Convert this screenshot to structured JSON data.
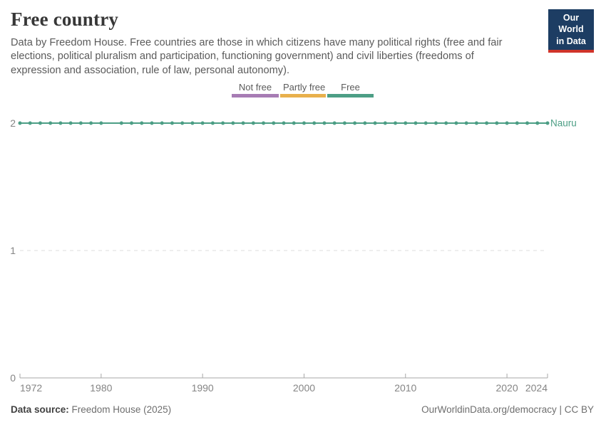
{
  "header": {
    "title": "Free country",
    "subtitle": "Data by Freedom House. Free countries are those in which citizens have many political rights (free and fair elections, political pluralism and participation, functioning government) and civil liberties (freedoms of expression and association, rule of law, personal autonomy).",
    "logo": {
      "line1": "Our World",
      "line2": "in Data",
      "bg_color": "#1d3d63",
      "accent_color": "#d0342a"
    }
  },
  "legend": {
    "items": [
      {
        "label": "Not free",
        "color": "#a77cb4"
      },
      {
        "label": "Partly free",
        "color": "#e8b04c"
      },
      {
        "label": "Free",
        "color": "#4c9e85"
      }
    ]
  },
  "chart_data": {
    "type": "line",
    "title": "Free country",
    "entity_label": "Nauru",
    "series": [
      {
        "name": "Nauru",
        "color": "#4c9e85",
        "x": [
          1972,
          1973,
          1974,
          1975,
          1976,
          1977,
          1978,
          1979,
          1980,
          1982,
          1983,
          1984,
          1985,
          1986,
          1987,
          1988,
          1989,
          1990,
          1991,
          1992,
          1993,
          1994,
          1995,
          1996,
          1997,
          1998,
          1999,
          2000,
          2001,
          2002,
          2003,
          2004,
          2005,
          2006,
          2007,
          2008,
          2009,
          2010,
          2011,
          2012,
          2013,
          2014,
          2015,
          2016,
          2017,
          2018,
          2019,
          2020,
          2021,
          2022,
          2023,
          2024
        ],
        "y": [
          2,
          2,
          2,
          2,
          2,
          2,
          2,
          2,
          2,
          2,
          2,
          2,
          2,
          2,
          2,
          2,
          2,
          2,
          2,
          2,
          2,
          2,
          2,
          2,
          2,
          2,
          2,
          2,
          2,
          2,
          2,
          2,
          2,
          2,
          2,
          2,
          2,
          2,
          2,
          2,
          2,
          2,
          2,
          2,
          2,
          2,
          2,
          2,
          2,
          2,
          2,
          2
        ]
      }
    ],
    "xlim": [
      1972,
      2024
    ],
    "ylim": [
      0,
      2
    ],
    "x_ticks": [
      1972,
      1980,
      1990,
      2000,
      2010,
      2020,
      2024
    ],
    "y_ticks": [
      0,
      1,
      2
    ],
    "value_legend": {
      "0": "Not free",
      "1": "Partly free",
      "2": "Free"
    },
    "grid": "horizontal-dashed",
    "legend_position": "top-center",
    "marker": "circle",
    "colors": {
      "grid": "#dcdcdc",
      "axis": "#a7a7a7",
      "tick_text": "#858585"
    }
  },
  "footer": {
    "source_label": "Data source:",
    "source_value": " Freedom House (2025)",
    "credit": "OurWorldinData.org/democracy | CC BY"
  }
}
